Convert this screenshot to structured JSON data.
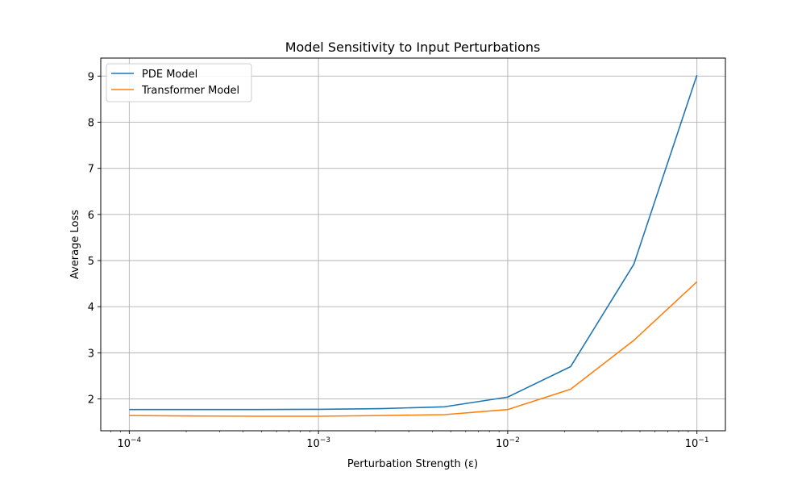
{
  "chart_data": {
    "type": "line",
    "title": "Model Sensitivity to Input Perturbations",
    "xlabel": "Perturbation Strength (ε)",
    "ylabel": "Average Loss",
    "xscale": "log",
    "xlim": [
      7.07e-05,
      0.1414
    ],
    "ylim": [
      1.31,
      9.39
    ],
    "grid": true,
    "legend_position": "top-left",
    "x_ticks": [
      {
        "value": 0.0001,
        "base": "10",
        "exp": "−4"
      },
      {
        "value": 0.001,
        "base": "10",
        "exp": "−3"
      },
      {
        "value": 0.01,
        "base": "10",
        "exp": "−2"
      },
      {
        "value": 0.1,
        "base": "10",
        "exp": "−1"
      }
    ],
    "y_ticks": [
      {
        "value": 2,
        "label": "2"
      },
      {
        "value": 3,
        "label": "3"
      },
      {
        "value": 4,
        "label": "4"
      },
      {
        "value": 5,
        "label": "5"
      },
      {
        "value": 6,
        "label": "6"
      },
      {
        "value": 7,
        "label": "7"
      },
      {
        "value": 8,
        "label": "8"
      },
      {
        "value": 9,
        "label": "9"
      }
    ],
    "x": [
      0.0001,
      0.000215,
      0.000464,
      0.001,
      0.00215,
      0.00464,
      0.01,
      0.0215,
      0.0464,
      0.1
    ],
    "series": [
      {
        "name": "PDE Model",
        "color": "#1f77b4",
        "values": [
          1.77,
          1.77,
          1.77,
          1.775,
          1.79,
          1.83,
          2.04,
          2.7,
          4.92,
          9.02
        ]
      },
      {
        "name": "Transformer Model",
        "color": "#ff7f0e",
        "values": [
          1.64,
          1.63,
          1.625,
          1.625,
          1.64,
          1.66,
          1.77,
          2.21,
          3.27,
          4.54
        ]
      }
    ]
  }
}
